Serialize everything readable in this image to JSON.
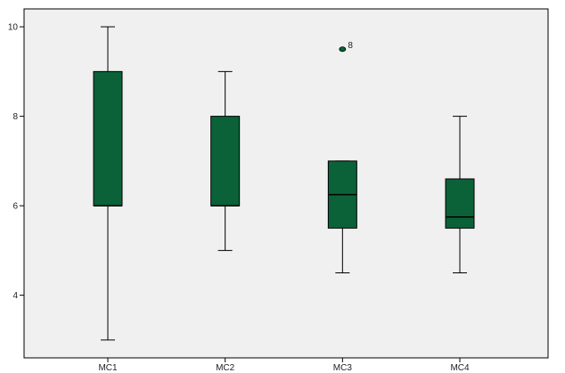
{
  "chart_data": {
    "type": "box",
    "title": "",
    "xlabel": "",
    "ylabel": "",
    "ylim": [
      2.6,
      10.4
    ],
    "yticks": [
      4,
      6,
      8,
      10
    ],
    "grid": false,
    "legend": "none",
    "colors": {
      "background": "#f0f0f0",
      "box_fill": "#0b6238",
      "outline": "#000000",
      "axis": "#000000"
    },
    "categories": [
      "MC1",
      "MC2",
      "MC3",
      "MC4"
    ],
    "boxes": [
      {
        "category": "MC1",
        "whisker_low": 3,
        "q1": 6,
        "median": 6,
        "q3": 9,
        "whisker_high": 10,
        "outliers": []
      },
      {
        "category": "MC2",
        "whisker_low": 5,
        "q1": 6,
        "median": 6,
        "q3": 8,
        "whisker_high": 9,
        "outliers": []
      },
      {
        "category": "MC3",
        "whisker_low": 4.5,
        "q1": 5.5,
        "median": 6.25,
        "q3": 7,
        "whisker_high": 7,
        "outliers": [
          {
            "value": 9.5,
            "label": "8"
          }
        ]
      },
      {
        "category": "MC4",
        "whisker_low": 4.5,
        "q1": 5.5,
        "median": 5.75,
        "q3": 6.6,
        "whisker_high": 8,
        "outliers": []
      }
    ]
  }
}
